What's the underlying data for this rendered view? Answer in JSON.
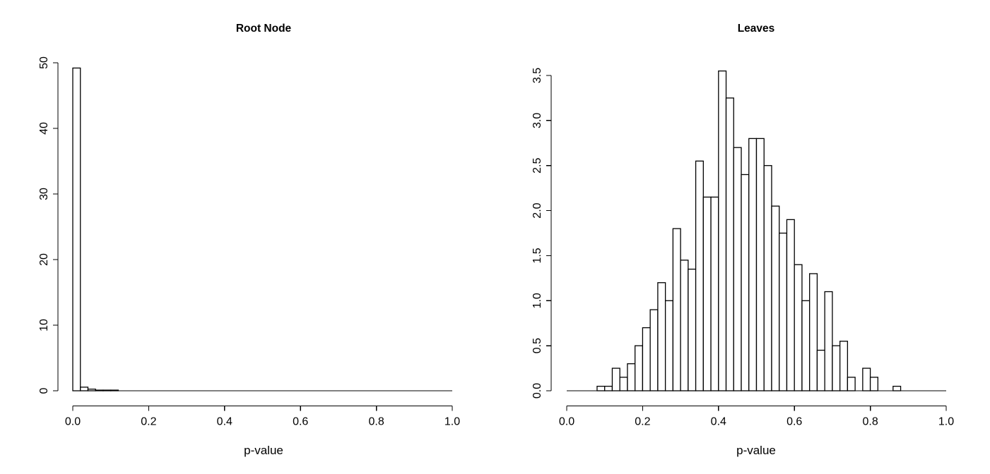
{
  "figure": {
    "background_color": "#ffffff",
    "ink_color": "#000000",
    "bar_fill_color": "#ffffff"
  },
  "panels": [
    {
      "title": "Root Node",
      "xlabel": "p-value",
      "x_ticks": [
        "0.0",
        "0.2",
        "0.4",
        "0.6",
        "0.8",
        "1.0"
      ],
      "y_ticks": [
        "0",
        "10",
        "20",
        "30",
        "40",
        "50"
      ]
    },
    {
      "title": "Leaves",
      "xlabel": "p-value",
      "x_ticks": [
        "0.0",
        "0.2",
        "0.4",
        "0.6",
        "0.8",
        "1.0"
      ],
      "y_ticks": [
        "0.0",
        "0.5",
        "1.0",
        "1.5",
        "2.0",
        "2.5",
        "3.0",
        "3.5"
      ]
    }
  ],
  "chart_data": [
    {
      "type": "bar",
      "subtype": "histogram",
      "title": "Root Node",
      "xlabel": "p-value",
      "ylabel": "",
      "xlim": [
        0,
        1
      ],
      "ylim": [
        0,
        50
      ],
      "x_tick_values": [
        0.0,
        0.2,
        0.4,
        0.6,
        0.8,
        1.0
      ],
      "y_tick_values": [
        0,
        10,
        20,
        30,
        40,
        50
      ],
      "bin_start": 0.0,
      "bin_width": 0.02,
      "values": [
        49.2,
        0.55,
        0.25,
        0.1,
        0.1,
        0.1
      ],
      "grid": false,
      "legend": false
    },
    {
      "type": "bar",
      "subtype": "histogram",
      "title": "Leaves",
      "xlabel": "p-value",
      "ylabel": "",
      "xlim": [
        0,
        1
      ],
      "ylim": [
        0,
        3.5
      ],
      "x_tick_values": [
        0.0,
        0.2,
        0.4,
        0.6,
        0.8,
        1.0
      ],
      "y_tick_values": [
        0.0,
        0.5,
        1.0,
        1.5,
        2.0,
        2.5,
        3.0,
        3.5
      ],
      "bin_start": 0.08,
      "bin_width": 0.02,
      "values": [
        0.05,
        0.05,
        0.25,
        0.15,
        0.3,
        0.5,
        0.7,
        0.9,
        1.2,
        1.0,
        1.8,
        1.45,
        1.35,
        2.55,
        2.15,
        2.15,
        3.55,
        3.25,
        2.7,
        2.4,
        2.8,
        2.8,
        2.5,
        2.05,
        1.75,
        1.9,
        1.4,
        1.0,
        1.3,
        0.45,
        1.1,
        0.5,
        0.55,
        0.15,
        0.0,
        0.25,
        0.15,
        0.0,
        0.0,
        0.05
      ],
      "grid": false,
      "legend": false
    }
  ]
}
